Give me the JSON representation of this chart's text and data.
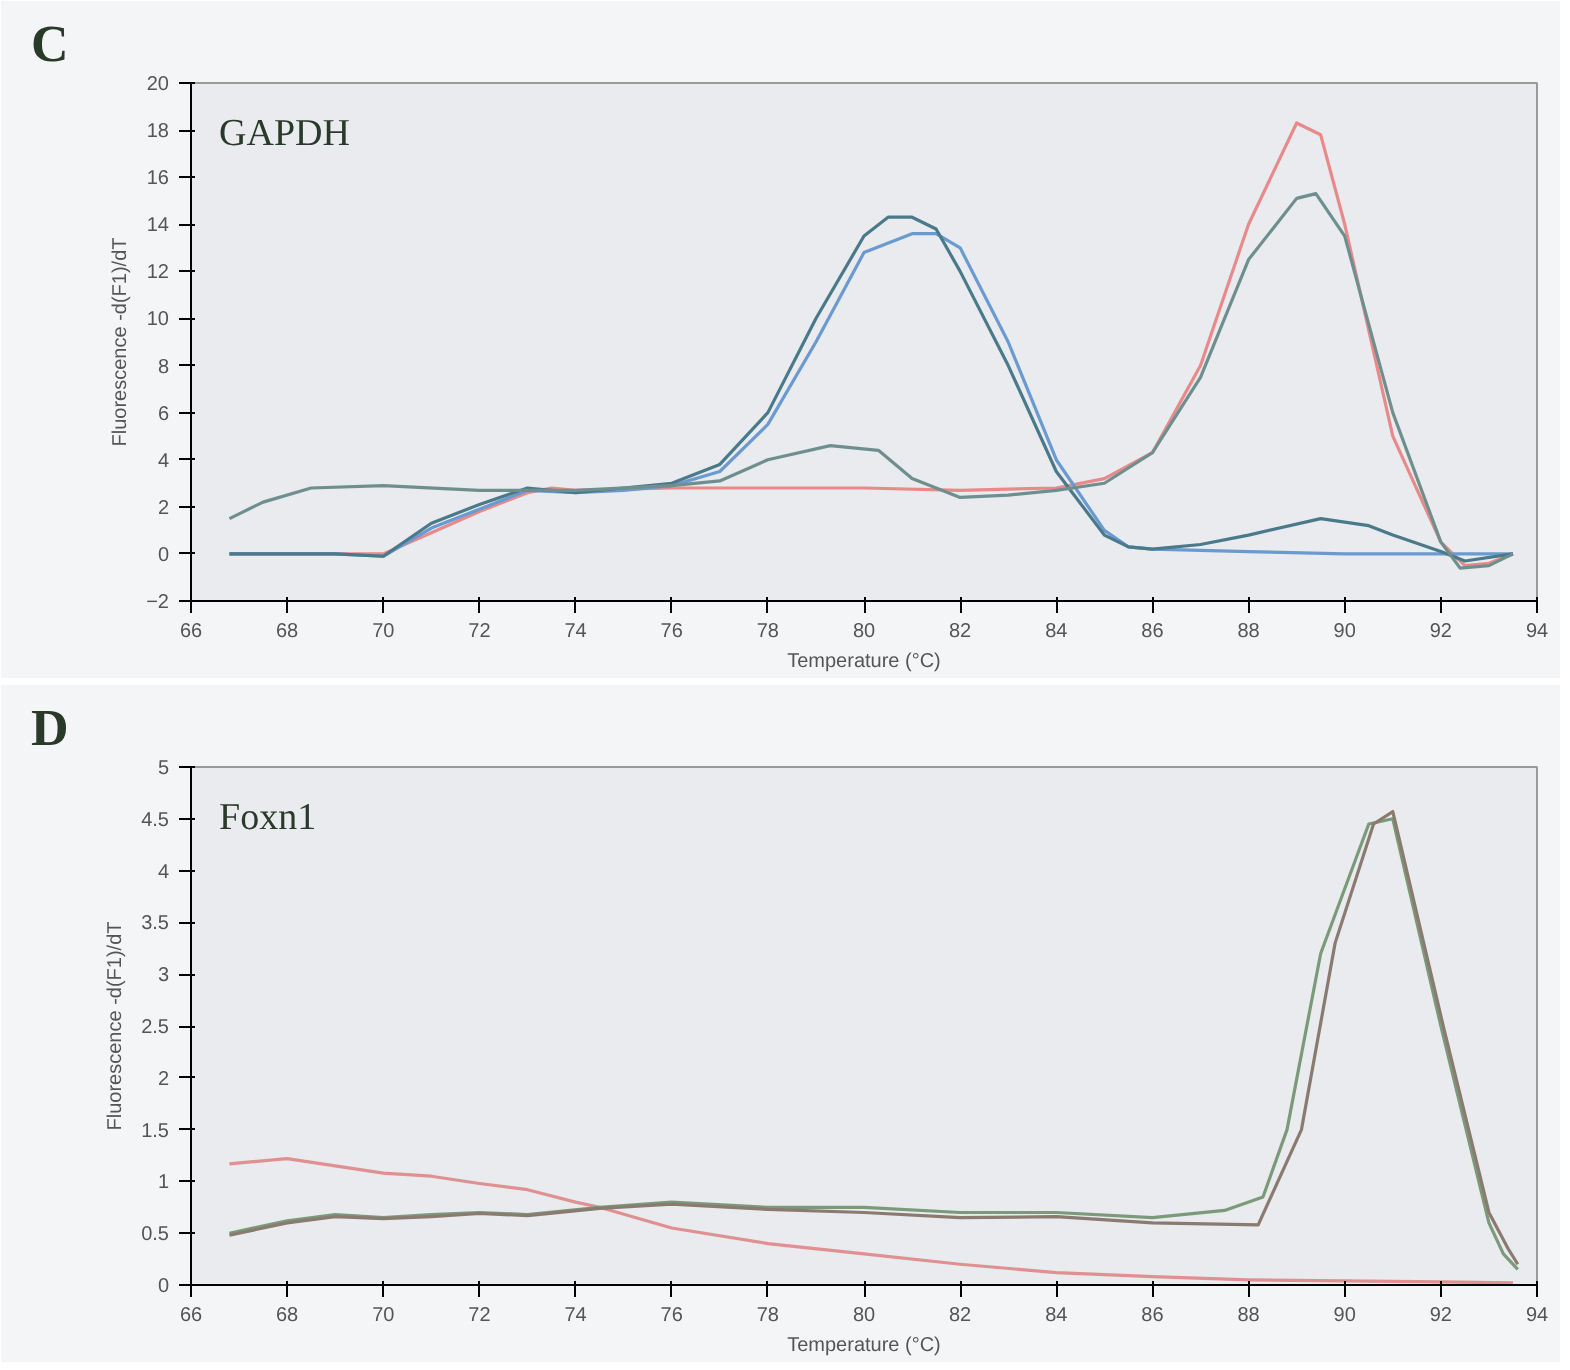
{
  "chart_data": [
    {
      "type": "line",
      "title": "C",
      "annotations": [
        "GAPDH"
      ],
      "xlabel": "Temperature (°C)",
      "ylabel": "Fluorescence -d(F1)/dT",
      "xlim": [
        66,
        94
      ],
      "xticks": [
        66,
        68,
        70,
        72,
        74,
        76,
        78,
        80,
        82,
        84,
        86,
        88,
        90,
        92,
        94
      ],
      "ylim": [
        -2,
        20
      ],
      "yticks": [
        -2,
        0,
        2,
        4,
        6,
        8,
        10,
        12,
        14,
        16,
        18,
        20
      ],
      "grid": false,
      "line_style": "solid",
      "marker": "none",
      "series": [
        {
          "color": "#e88a8a",
          "x": [
            66.8,
            68,
            69,
            70,
            71,
            72,
            73,
            73.5,
            74,
            76,
            78,
            80,
            82,
            84,
            85,
            86,
            87,
            88,
            89,
            89.5,
            90,
            91,
            92,
            92.5,
            93,
            93.5
          ],
          "values": [
            0,
            0,
            0,
            0,
            0.9,
            1.8,
            2.6,
            2.8,
            2.7,
            2.8,
            2.8,
            2.8,
            2.7,
            2.8,
            3.2,
            4.3,
            8,
            14,
            18.3,
            17.8,
            14,
            5,
            0.5,
            -0.5,
            -0.4,
            0
          ]
        },
        {
          "color": "#6a9ad0",
          "x": [
            66.8,
            68,
            69,
            70,
            71,
            72,
            73,
            74,
            75,
            76,
            77,
            78,
            79,
            80,
            81,
            81.5,
            82,
            83,
            84,
            85,
            85.5,
            86,
            88,
            90,
            92,
            93.5
          ],
          "values": [
            0,
            0,
            0,
            -0.1,
            1.1,
            1.9,
            2.7,
            2.6,
            2.7,
            2.9,
            3.5,
            5.5,
            9,
            12.8,
            13.6,
            13.6,
            13,
            9,
            4,
            1,
            0.3,
            0.2,
            0.1,
            0,
            0,
            0
          ]
        },
        {
          "color": "#4a7a8a",
          "x": [
            66.8,
            68,
            69,
            70,
            71,
            72,
            73,
            74,
            75,
            76,
            77,
            78,
            79,
            80,
            80.5,
            81,
            81.5,
            82,
            83,
            84,
            85,
            85.5,
            86,
            87,
            88,
            89.5,
            90.5,
            91,
            92,
            92.5,
            93.5
          ],
          "values": [
            0,
            0,
            0,
            -0.1,
            1.3,
            2.1,
            2.8,
            2.6,
            2.8,
            3.0,
            3.8,
            6,
            10,
            13.5,
            14.3,
            14.3,
            13.8,
            12,
            8,
            3.5,
            0.8,
            0.3,
            0.2,
            0.4,
            0.8,
            1.5,
            1.2,
            0.8,
            0.1,
            -0.3,
            0
          ]
        },
        {
          "color": "#6f8f8f",
          "x": [
            66.8,
            67.5,
            68.5,
            70,
            72,
            74,
            76,
            77,
            78,
            79.3,
            80.3,
            81,
            82,
            83,
            84,
            85,
            86,
            87,
            88,
            89,
            89.4,
            90,
            91,
            92,
            92.4,
            93,
            93.5
          ],
          "values": [
            1.5,
            2.2,
            2.8,
            2.9,
            2.7,
            2.7,
            2.9,
            3.1,
            4.0,
            4.6,
            4.4,
            3.2,
            2.4,
            2.5,
            2.7,
            3,
            4.3,
            7.5,
            12.5,
            15.1,
            15.3,
            13.5,
            6,
            0.5,
            -0.6,
            -0.5,
            0
          ]
        }
      ]
    },
    {
      "type": "line",
      "title": "D",
      "annotations": [
        "Foxn1"
      ],
      "xlabel": "Temperature (°C)",
      "ylabel": "Fluorescence -d(F1)/dT",
      "xlim": [
        66,
        94
      ],
      "xticks": [
        66,
        68,
        70,
        72,
        74,
        76,
        78,
        80,
        82,
        84,
        86,
        88,
        90,
        92,
        94
      ],
      "ylim": [
        0,
        5
      ],
      "yticks": [
        0,
        0.5,
        1,
        1.5,
        2,
        2.5,
        3,
        3.5,
        4,
        4.5,
        5
      ],
      "grid": false,
      "line_style": "solid",
      "marker": "none",
      "series": [
        {
          "color": "#e09090",
          "x": [
            66.8,
            68,
            69,
            70,
            71,
            72,
            73,
            74,
            74.5,
            76,
            78,
            80,
            82,
            84,
            86,
            88,
            90,
            92,
            93.5
          ],
          "values": [
            1.17,
            1.22,
            1.15,
            1.08,
            1.05,
            0.98,
            0.92,
            0.8,
            0.75,
            0.55,
            0.4,
            0.3,
            0.2,
            0.12,
            0.08,
            0.05,
            0.04,
            0.03,
            0.02
          ]
        },
        {
          "color": "#7a9a7a",
          "x": [
            66.8,
            68,
            69,
            70,
            71,
            72,
            73,
            74.5,
            76,
            78,
            80,
            82,
            84,
            86,
            87.5,
            88.3,
            88.8,
            89.5,
            90.5,
            91,
            92,
            93,
            93.3,
            93.6
          ],
          "values": [
            0.5,
            0.62,
            0.68,
            0.65,
            0.68,
            0.7,
            0.68,
            0.75,
            0.8,
            0.75,
            0.75,
            0.7,
            0.7,
            0.65,
            0.72,
            0.85,
            1.5,
            3.2,
            4.45,
            4.5,
            2.5,
            0.6,
            0.3,
            0.15
          ]
        },
        {
          "color": "#8a7a70",
          "x": [
            66.8,
            68,
            69,
            70,
            71,
            72,
            73,
            74.5,
            76,
            78,
            80,
            82,
            84,
            86,
            88.2,
            89.1,
            89.8,
            90.6,
            91,
            92.05,
            93,
            93.4,
            93.6
          ],
          "values": [
            0.48,
            0.6,
            0.66,
            0.64,
            0.66,
            0.69,
            0.67,
            0.74,
            0.78,
            0.73,
            0.7,
            0.65,
            0.66,
            0.6,
            0.58,
            1.5,
            3.3,
            4.45,
            4.57,
            2.5,
            0.7,
            0.35,
            0.2
          ]
        }
      ]
    }
  ]
}
